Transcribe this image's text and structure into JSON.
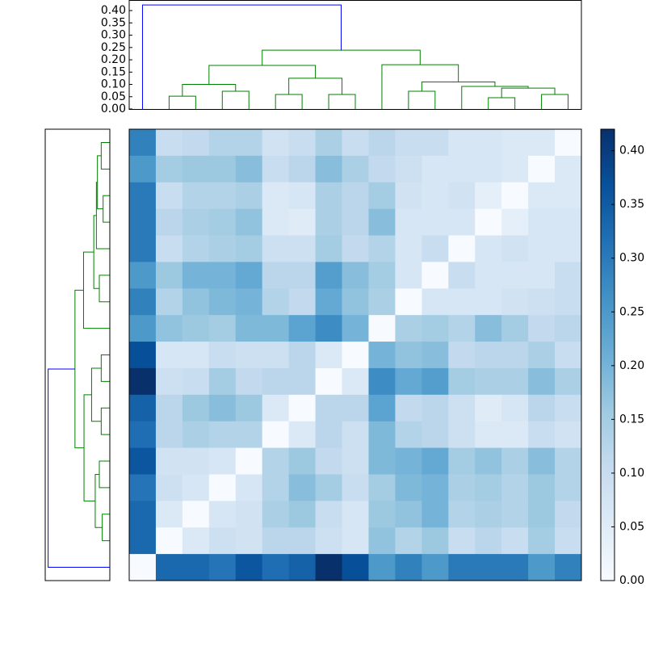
{
  "chart_data": {
    "type": "clustermap",
    "matrix": [
      [
        0.29,
        0.1,
        0.11,
        0.13,
        0.13,
        0.08,
        0.1,
        0.14,
        0.1,
        0.12,
        0.1,
        0.1,
        0.07,
        0.07,
        0.06,
        0.06,
        0.0
      ],
      [
        0.25,
        0.15,
        0.16,
        0.16,
        0.18,
        0.1,
        0.12,
        0.18,
        0.14,
        0.11,
        0.09,
        0.07,
        0.07,
        0.07,
        0.06,
        0.0,
        0.06
      ],
      [
        0.3,
        0.1,
        0.13,
        0.13,
        0.14,
        0.06,
        0.07,
        0.14,
        0.12,
        0.15,
        0.08,
        0.07,
        0.08,
        0.04,
        0.0,
        0.06,
        0.06
      ],
      [
        0.3,
        0.12,
        0.14,
        0.15,
        0.17,
        0.06,
        0.05,
        0.14,
        0.12,
        0.18,
        0.07,
        0.07,
        0.07,
        0.0,
        0.04,
        0.07,
        0.07
      ],
      [
        0.3,
        0.1,
        0.13,
        0.14,
        0.15,
        0.09,
        0.09,
        0.15,
        0.11,
        0.13,
        0.07,
        0.1,
        0.0,
        0.07,
        0.08,
        0.07,
        0.07
      ],
      [
        0.25,
        0.16,
        0.2,
        0.2,
        0.22,
        0.12,
        0.12,
        0.24,
        0.18,
        0.15,
        0.07,
        0.0,
        0.1,
        0.07,
        0.07,
        0.07,
        0.1
      ],
      [
        0.29,
        0.13,
        0.17,
        0.19,
        0.2,
        0.13,
        0.11,
        0.22,
        0.17,
        0.14,
        0.0,
        0.07,
        0.07,
        0.07,
        0.08,
        0.09,
        0.1
      ],
      [
        0.25,
        0.17,
        0.16,
        0.15,
        0.19,
        0.19,
        0.23,
        0.27,
        0.2,
        0.0,
        0.14,
        0.15,
        0.13,
        0.18,
        0.15,
        0.11,
        0.12
      ],
      [
        0.37,
        0.07,
        0.07,
        0.1,
        0.09,
        0.09,
        0.12,
        0.06,
        0.0,
        0.2,
        0.17,
        0.18,
        0.11,
        0.12,
        0.12,
        0.14,
        0.1
      ],
      [
        0.42,
        0.09,
        0.1,
        0.15,
        0.11,
        0.12,
        0.12,
        0.0,
        0.06,
        0.27,
        0.22,
        0.24,
        0.15,
        0.14,
        0.14,
        0.18,
        0.14
      ],
      [
        0.34,
        0.12,
        0.16,
        0.18,
        0.16,
        0.06,
        0.0,
        0.12,
        0.12,
        0.23,
        0.11,
        0.12,
        0.09,
        0.05,
        0.07,
        0.12,
        0.1
      ],
      [
        0.32,
        0.12,
        0.14,
        0.13,
        0.13,
        0.0,
        0.06,
        0.12,
        0.09,
        0.19,
        0.13,
        0.12,
        0.09,
        0.06,
        0.06,
        0.1,
        0.08
      ],
      [
        0.36,
        0.08,
        0.08,
        0.07,
        0.0,
        0.13,
        0.16,
        0.11,
        0.09,
        0.19,
        0.2,
        0.22,
        0.15,
        0.17,
        0.14,
        0.18,
        0.13
      ],
      [
        0.31,
        0.09,
        0.07,
        0.0,
        0.07,
        0.13,
        0.18,
        0.15,
        0.1,
        0.15,
        0.19,
        0.2,
        0.14,
        0.15,
        0.13,
        0.16,
        0.13
      ],
      [
        0.33,
        0.06,
        0.0,
        0.07,
        0.08,
        0.14,
        0.16,
        0.1,
        0.07,
        0.16,
        0.17,
        0.2,
        0.13,
        0.14,
        0.13,
        0.16,
        0.11
      ],
      [
        0.33,
        0.0,
        0.06,
        0.09,
        0.08,
        0.12,
        0.12,
        0.09,
        0.07,
        0.17,
        0.13,
        0.16,
        0.1,
        0.12,
        0.1,
        0.15,
        0.1
      ],
      [
        0.0,
        0.33,
        0.33,
        0.31,
        0.36,
        0.32,
        0.34,
        0.42,
        0.37,
        0.25,
        0.29,
        0.25,
        0.3,
        0.3,
        0.3,
        0.25,
        0.29
      ]
    ],
    "colormap": [
      "#f7fbff",
      "#deebf7",
      "#c6dbef",
      "#9ecae1",
      "#6baed6",
      "#4292c6",
      "#2171b5",
      "#08519c",
      "#08306b"
    ],
    "clim": [
      0,
      0.42
    ],
    "cticks": [
      {
        "value": 0,
        "label": "0.00"
      },
      {
        "value": 0.05,
        "label": "0.05"
      },
      {
        "value": 0.1,
        "label": "0.10"
      },
      {
        "value": 0.15,
        "label": "0.15"
      },
      {
        "value": 0.2,
        "label": "0.20"
      },
      {
        "value": 0.25,
        "label": "0.25"
      },
      {
        "value": 0.3,
        "label": "0.30"
      },
      {
        "value": 0.35,
        "label": "0.35"
      },
      {
        "value": 0.4,
        "label": "0.40"
      }
    ],
    "linkage": [
      {
        "pair": [
          1,
          2
        ],
        "height": 0.052,
        "color": "#008000"
      },
      {
        "pair": [
          3,
          4
        ],
        "height": 0.072,
        "color": "#008000"
      },
      {
        "pair": [
          17,
          18
        ],
        "height": 0.1,
        "color": "#008000"
      },
      {
        "pair": [
          5,
          6
        ],
        "height": 0.059,
        "color": "#008000"
      },
      {
        "pair": [
          7,
          8
        ],
        "height": 0.059,
        "color": "#008000"
      },
      {
        "pair": [
          20,
          21
        ],
        "height": 0.125,
        "color": "#008000"
      },
      {
        "pair": [
          19,
          22
        ],
        "height": 0.177,
        "color": "#008000"
      },
      {
        "pair": [
          10,
          11
        ],
        "height": 0.072,
        "color": "#008000"
      },
      {
        "pair": [
          13,
          14
        ],
        "height": 0.046,
        "color": "#008000"
      },
      {
        "pair": [
          15,
          16
        ],
        "height": 0.059,
        "color": "#008000"
      },
      {
        "pair": [
          25,
          26
        ],
        "height": 0.085,
        "color": "#008000"
      },
      {
        "pair": [
          12,
          27
        ],
        "height": 0.092,
        "color": "#008000"
      },
      {
        "pair": [
          24,
          28
        ],
        "height": 0.11,
        "color": "#008000"
      },
      {
        "pair": [
          9,
          29
        ],
        "height": 0.18,
        "color": "#008000"
      },
      {
        "pair": [
          23,
          30
        ],
        "height": 0.239,
        "color": "#008000"
      },
      {
        "pair": [
          0,
          31
        ],
        "height": 0.423,
        "color": "#0000ff"
      }
    ],
    "ylim": [
      0,
      0.443
    ],
    "yticks": [
      {
        "value": 0,
        "label": "0.00"
      },
      {
        "value": 0.05,
        "label": "0.05"
      },
      {
        "value": 0.1,
        "label": "0.10"
      },
      {
        "value": 0.15,
        "label": "0.15"
      },
      {
        "value": 0.2,
        "label": "0.20"
      },
      {
        "value": 0.25,
        "label": "0.25"
      },
      {
        "value": 0.3,
        "label": "0.30"
      },
      {
        "value": 0.35,
        "label": "0.35"
      },
      {
        "value": 0.4,
        "label": "0.40"
      }
    ]
  }
}
